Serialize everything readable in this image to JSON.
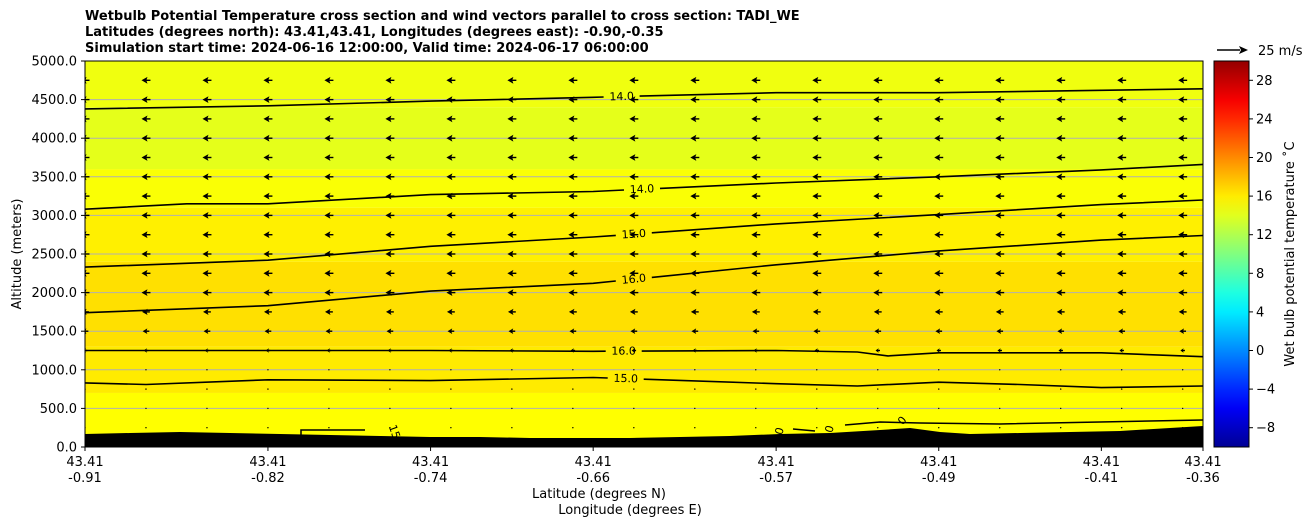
{
  "title": {
    "line1": "Wetbulb Potential Temperature cross section and wind vectors parallel to cross section: TADI_WE",
    "line2": "Latitudes (degrees north): 43.41,43.41, Longitudes (degrees east): -0.90,-0.35",
    "line3": "Simulation start time: 2024-06-16 12:00:00, Valid time: 2024-06-17 06:00:00"
  },
  "chart_data": {
    "type": "heatmap",
    "title": "Wetbulb Potential Temperature cross section and wind vectors parallel to cross section: TADI_WE",
    "xlabel": "Latitude (degrees N)",
    "xlabel2": "Longitude (degrees E)",
    "ylabel": "Altitude (meters)",
    "ylim": [
      0,
      5000
    ],
    "xlim": [
      -0.91,
      -0.36
    ],
    "y_ticks": [
      "0.0",
      "500.0",
      "1000.0",
      "1500.0",
      "2000.0",
      "2500.0",
      "3000.0",
      "3500.0",
      "4000.0",
      "4500.0",
      "5000.0"
    ],
    "y_tick_values": [
      0,
      500,
      1000,
      1500,
      2000,
      2500,
      3000,
      3500,
      4000,
      4500,
      5000
    ],
    "x_tick_values": [
      -0.91,
      -0.82,
      -0.74,
      -0.66,
      -0.57,
      -0.49,
      -0.41,
      -0.36
    ],
    "x_tick_lat": [
      "43.41",
      "43.41",
      "43.41",
      "43.41",
      "43.41",
      "43.41",
      "43.41",
      "43.41"
    ],
    "x_tick_lon": [
      "-0.91",
      "-0.82",
      "-0.74",
      "-0.66",
      "-0.57",
      "-0.49",
      "-0.41",
      "-0.36"
    ],
    "grid": "horizontal",
    "colorbar": {
      "label": "Wet bulb potential temperature ˚C",
      "vmin": -10,
      "vmax": 30,
      "ticks": [
        "−8",
        "−4",
        "0",
        "4",
        "8",
        "12",
        "16",
        "20",
        "24",
        "28"
      ],
      "tick_values": [
        -8,
        -4,
        0,
        4,
        8,
        12,
        16,
        20,
        24,
        28
      ],
      "colormap": "jet"
    },
    "field_layers": [
      {
        "zmin": 0,
        "zmax": 700,
        "value": 15.0
      },
      {
        "zmin": 700,
        "zmax": 1300,
        "value": 15.8
      },
      {
        "zmin": 1300,
        "zmax": 2400,
        "value": 16.2
      },
      {
        "zmin": 2400,
        "zmax": 3100,
        "value": 15.6
      },
      {
        "zmin": 3100,
        "zmax": 3600,
        "value": 14.8
      },
      {
        "zmin": 3600,
        "zmax": 4400,
        "value": 14.0
      },
      {
        "zmin": 4400,
        "zmax": 5000,
        "value": 14.4
      }
    ],
    "contours": [
      {
        "level": "14.0",
        "label_at": -0.646,
        "points": [
          [
            -0.91,
            4380
          ],
          [
            -0.82,
            4420
          ],
          [
            -0.74,
            4480
          ],
          [
            -0.66,
            4530
          ],
          [
            -0.57,
            4590
          ],
          [
            -0.49,
            4590
          ],
          [
            -0.41,
            4620
          ],
          [
            -0.36,
            4640
          ]
        ]
      },
      {
        "level": "14.0",
        "label_at": -0.636,
        "points": [
          [
            -0.91,
            3080
          ],
          [
            -0.86,
            3150
          ],
          [
            -0.82,
            3150
          ],
          [
            -0.74,
            3270
          ],
          [
            -0.66,
            3310
          ],
          [
            -0.57,
            3420
          ],
          [
            -0.49,
            3500
          ],
          [
            -0.41,
            3590
          ],
          [
            -0.36,
            3660
          ]
        ]
      },
      {
        "level": "15.0",
        "label_at": -0.64,
        "points": [
          [
            -0.91,
            2330
          ],
          [
            -0.82,
            2420
          ],
          [
            -0.74,
            2600
          ],
          [
            -0.66,
            2720
          ],
          [
            -0.57,
            2890
          ],
          [
            -0.49,
            3010
          ],
          [
            -0.41,
            3140
          ],
          [
            -0.36,
            3200
          ]
        ]
      },
      {
        "level": "16.0",
        "label_at": -0.64,
        "points": [
          [
            -0.91,
            1740
          ],
          [
            -0.82,
            1830
          ],
          [
            -0.74,
            2020
          ],
          [
            -0.66,
            2120
          ],
          [
            -0.57,
            2360
          ],
          [
            -0.49,
            2540
          ],
          [
            -0.41,
            2680
          ],
          [
            -0.36,
            2740
          ]
        ]
      },
      {
        "level": "16.0",
        "label_at": -0.645,
        "points": [
          [
            -0.91,
            1250
          ],
          [
            -0.82,
            1250
          ],
          [
            -0.74,
            1250
          ],
          [
            -0.66,
            1240
          ],
          [
            -0.57,
            1250
          ],
          [
            -0.53,
            1230
          ],
          [
            -0.515,
            1180
          ],
          [
            -0.49,
            1220
          ],
          [
            -0.41,
            1220
          ],
          [
            -0.36,
            1170
          ]
        ]
      },
      {
        "level": "15.0",
        "label_at": -0.644,
        "points": [
          [
            -0.91,
            830
          ],
          [
            -0.88,
            810
          ],
          [
            -0.82,
            870
          ],
          [
            -0.74,
            860
          ],
          [
            -0.66,
            900
          ],
          [
            -0.57,
            820
          ],
          [
            -0.53,
            790
          ],
          [
            -0.49,
            840
          ],
          [
            -0.45,
            810
          ],
          [
            -0.41,
            770
          ],
          [
            -0.36,
            790
          ]
        ]
      }
    ],
    "surface_labels": [
      "15",
      "0",
      "0",
      "0"
    ],
    "wind": {
      "reference_label": "25 m/s",
      "reference_speed": 25,
      "x_levels": [
        -0.91,
        -0.88,
        -0.85,
        -0.82,
        -0.79,
        -0.76,
        -0.73,
        -0.7,
        -0.67,
        -0.64,
        -0.61,
        -0.58,
        -0.55,
        -0.52,
        -0.49,
        -0.46,
        -0.43,
        -0.4,
        -0.37
      ],
      "z_levels": [
        250,
        500,
        750,
        1000,
        1250,
        1500,
        1750,
        2000,
        2250,
        2500,
        2750,
        3000,
        3250,
        3500,
        3750,
        4000,
        4250,
        4500,
        4750
      ],
      "speeds": [
        0.3,
        0.3,
        0.5,
        0.8,
        4,
        6,
        7,
        8,
        8,
        8,
        8,
        8,
        8,
        8,
        8,
        8,
        8,
        8,
        8
      ]
    }
  }
}
